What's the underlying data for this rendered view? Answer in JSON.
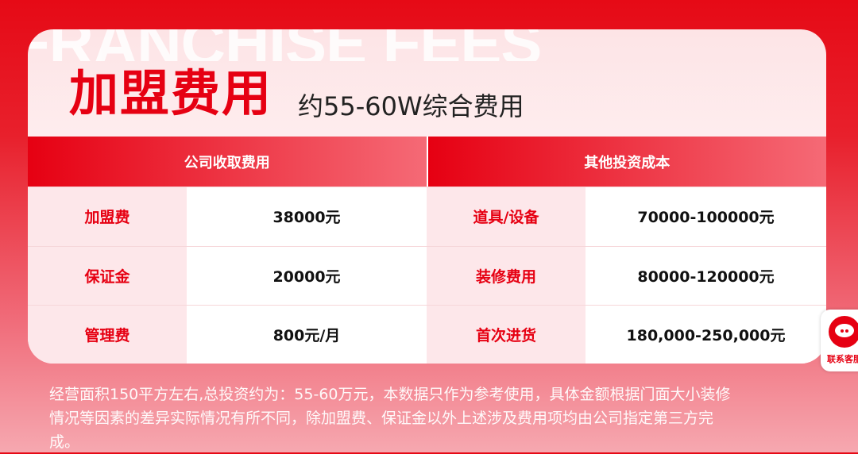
{
  "watermark": "FRANCHISE FEES",
  "title": "加盟费用",
  "subtitle": "约55-60W综合费用",
  "table": {
    "headers": [
      "公司收取费用",
      "其他投资成本"
    ],
    "rows": [
      [
        "加盟费",
        "38000元",
        "道具/设备",
        "70000-100000元"
      ],
      [
        "保证金",
        "20000元",
        "装修费用",
        "80000-120000元"
      ],
      [
        "管理费",
        "800元/月",
        "首次进货",
        "180,000-250,000元"
      ]
    ]
  },
  "footer": {
    "lines": [
      "经营面积150平方左右,总投资约为：55-60万元，本数据只作为参考使用，具体金额根据门面大小装修",
      "情况等因素的差异实际情况有所不同，除加盟费、保证金以外上述涉及费用项均由公司指定第三方完",
      "成。"
    ]
  },
  "customer_service": {
    "label": "联系客服",
    "icon": "chat-bubble-icon"
  }
}
